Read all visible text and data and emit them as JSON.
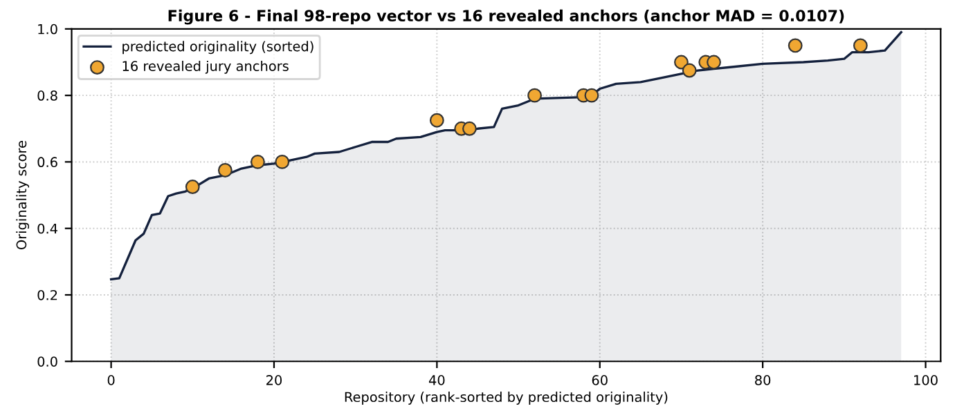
{
  "chart_data": {
    "type": "area",
    "title": "Figure 6 - Final 98-repo vector vs 16 revealed anchors (anchor MAD = 0.0107)",
    "xlabel": "Repository (rank-sorted by predicted originality)",
    "ylabel": "Originality score",
    "series": [
      {
        "name": "predicted originality (sorted)",
        "color": "#14213d",
        "x": [
          0,
          1,
          3,
          4,
          5,
          6,
          7,
          8,
          9,
          10,
          12,
          14,
          16,
          18,
          20,
          22,
          24,
          25,
          28,
          30,
          32,
          34,
          35,
          38,
          40,
          41,
          44,
          45,
          47,
          48,
          50,
          52,
          58,
          59,
          60,
          62,
          65,
          67,
          70,
          72,
          74,
          76,
          80,
          85,
          88,
          90,
          91,
          93,
          95,
          97
        ],
        "values": [
          0.247,
          0.25,
          0.364,
          0.384,
          0.44,
          0.445,
          0.497,
          0.505,
          0.51,
          0.52,
          0.55,
          0.56,
          0.58,
          0.59,
          0.595,
          0.605,
          0.615,
          0.625,
          0.63,
          0.645,
          0.66,
          0.66,
          0.67,
          0.675,
          0.69,
          0.695,
          0.695,
          0.7,
          0.705,
          0.76,
          0.77,
          0.79,
          0.795,
          0.8,
          0.82,
          0.835,
          0.84,
          0.85,
          0.865,
          0.875,
          0.88,
          0.885,
          0.895,
          0.9,
          0.905,
          0.91,
          0.93,
          0.93,
          0.935,
          0.99
        ]
      },
      {
        "name": "16 revealed jury anchors",
        "type": "scatter",
        "color": "#f0a732",
        "marker": "circle",
        "x": [
          10,
          14,
          18,
          21,
          40,
          43,
          44,
          52,
          58,
          59,
          70,
          71,
          73,
          74,
          84,
          92
        ],
        "values": [
          0.525,
          0.575,
          0.6,
          0.6,
          0.725,
          0.7,
          0.7,
          0.8,
          0.8,
          0.8,
          0.9,
          0.875,
          0.9,
          0.9,
          0.95,
          0.95
        ]
      }
    ],
    "xlim": [
      -4.85,
      101.85
    ],
    "xticks": [
      0,
      20,
      40,
      60,
      80,
      100
    ],
    "ylim": [
      0,
      1
    ],
    "yticks": [
      {
        "value": 0,
        "label": "0.0"
      },
      {
        "value": 0.2,
        "label": "0.2"
      },
      {
        "value": 0.4,
        "label": "0.4"
      },
      {
        "value": 0.6,
        "label": "0.6"
      },
      {
        "value": 0.8,
        "label": "0.8"
      },
      {
        "value": 1,
        "label": "1.0"
      }
    ],
    "grid": true,
    "legend": "top left"
  }
}
